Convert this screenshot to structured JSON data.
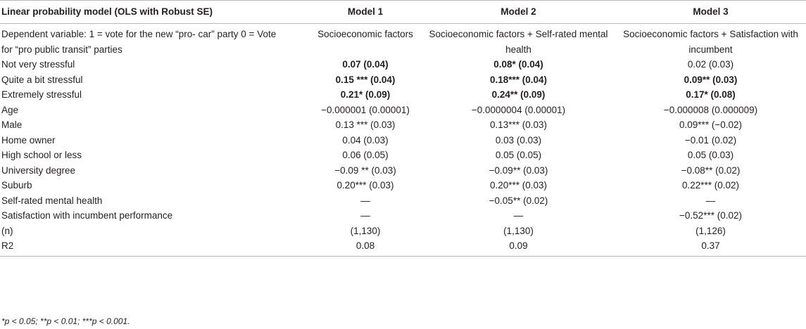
{
  "table": {
    "columns": [
      "Linear probability model (OLS with Robust SE)",
      "Model 1",
      "Model 2",
      "Model 3"
    ],
    "rows": [
      {
        "label": "Dependent variable: 1 = vote for the new “pro- car” party 0 = Vote for “pro public transit” parties",
        "cells": [
          "Socioeconomic factors",
          "Socioeconomic factors + Self-rated mental health",
          "Socioeconomic factors + Satisfaction with incumbent"
        ],
        "bold": [
          false,
          false,
          false
        ]
      },
      {
        "label": "Not very stressful",
        "cells": [
          "0.07 (0.04)",
          "0.08* (0.04)",
          "0.02 (0.03)"
        ],
        "bold": [
          true,
          true,
          false
        ]
      },
      {
        "label": "Quite a bit stressful",
        "cells": [
          "0.15 *** (0.04)",
          "0.18*** (0.04)",
          "0.09** (0.03)"
        ],
        "bold": [
          true,
          true,
          true
        ]
      },
      {
        "label": "Extremely stressful",
        "cells": [
          "0.21* (0.09)",
          "0.24** (0.09)",
          "0.17* (0.08)"
        ],
        "bold": [
          true,
          true,
          true
        ]
      },
      {
        "label": "Age",
        "cells": [
          "−0.000001 (0.00001)",
          "−0.0000004 (0.00001)",
          "−0.000008 (0.000009)"
        ],
        "bold": [
          false,
          false,
          false
        ]
      },
      {
        "label": "Male",
        "cells": [
          "0.13 *** (0.03)",
          "0.13*** (0.03)",
          "0.09*** (−0.02)"
        ],
        "bold": [
          false,
          false,
          false
        ]
      },
      {
        "label": "Home owner",
        "cells": [
          "0.04 (0.03)",
          "0.03 (0.03)",
          "−0.01 (0.02)"
        ],
        "bold": [
          false,
          false,
          false
        ]
      },
      {
        "label": "High school or less",
        "cells": [
          "0.06 (0.05)",
          "0.05 (0.05)",
          "0.05 (0.03)"
        ],
        "bold": [
          false,
          false,
          false
        ]
      },
      {
        "label": "University degree",
        "cells": [
          "−0.09 ** (0.03)",
          "−0.09** (0.03)",
          "−0.08** (0.02)"
        ],
        "bold": [
          false,
          false,
          false
        ]
      },
      {
        "label": "Suburb",
        "cells": [
          "0.20*** (0.03)",
          "0.20*** (0.03)",
          "0.22*** (0.02)"
        ],
        "bold": [
          false,
          false,
          false
        ]
      },
      {
        "label": "Self-rated mental health",
        "cells": [
          "—",
          "−0.05** (0.02)",
          "—"
        ],
        "bold": [
          false,
          false,
          false
        ]
      },
      {
        "label": "Satisfaction with incumbent performance",
        "cells": [
          "—",
          "—",
          "−0.52*** (0.02)"
        ],
        "bold": [
          false,
          false,
          false
        ]
      },
      {
        "label": "(n)",
        "cells": [
          "(1,130)",
          "(1,130)",
          "(1,126)"
        ],
        "bold": [
          false,
          false,
          false
        ]
      },
      {
        "label": "R2",
        "cells": [
          "0.08",
          "0.09",
          "0.37"
        ],
        "bold": [
          false,
          false,
          false
        ]
      }
    ]
  },
  "footnote": "*p < 0.05; **p < 0.01; ***p < 0.001."
}
